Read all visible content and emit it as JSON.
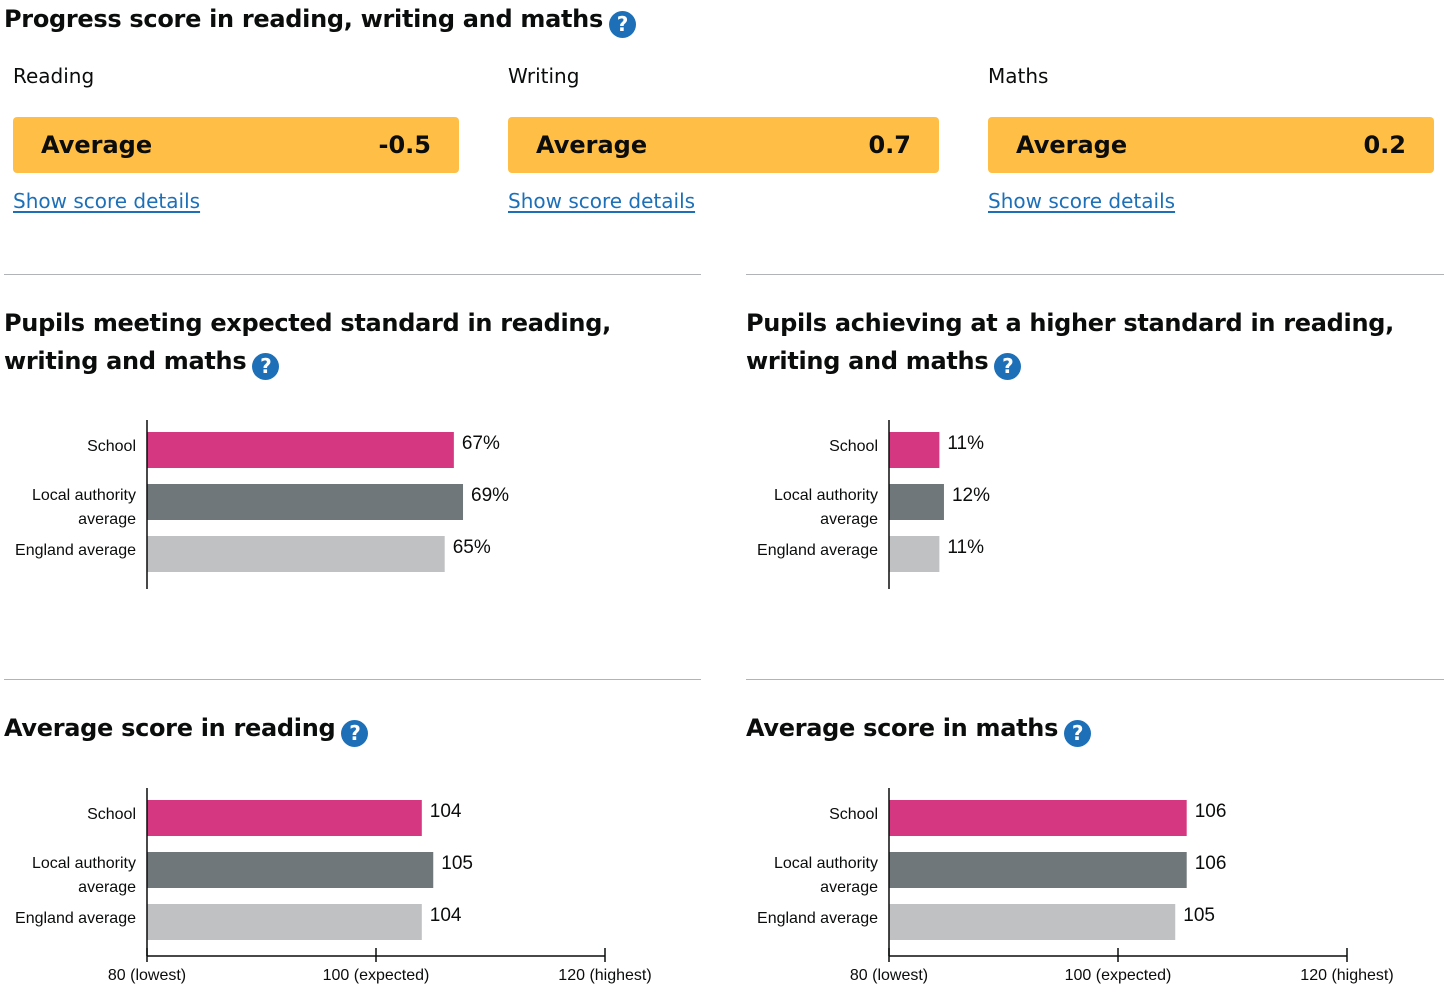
{
  "progress": {
    "title": "Progress score in reading, writing and maths",
    "help_icon": "?",
    "subjects": [
      {
        "label": "Reading",
        "band": "Average",
        "score": "-0.5",
        "link": "Show score details"
      },
      {
        "label": "Writing",
        "band": "Average",
        "score": "0.7",
        "link": "Show score details"
      },
      {
        "label": "Maths",
        "band": "Average",
        "score": "0.2",
        "link": "Show score details"
      }
    ],
    "band_color": "#ffbf47"
  },
  "colors": {
    "school": "#d53880",
    "local": "#6f777b",
    "england": "#bfc1c3",
    "link": "#1d70b8"
  },
  "chart_data": [
    {
      "type": "bar",
      "title": "Pupils meeting expected standard in reading, writing and maths",
      "categories": [
        "School",
        "Local authority average",
        "England average"
      ],
      "values": [
        67,
        69,
        65
      ],
      "value_labels": [
        "67%",
        "69%",
        "65%"
      ],
      "xlim": [
        0,
        100
      ],
      "tick_labels": [],
      "orientation": "horizontal"
    },
    {
      "type": "bar",
      "title": "Pupils achieving at a higher standard in reading, writing and maths",
      "categories": [
        "School",
        "Local authority average",
        "England average"
      ],
      "values": [
        11,
        12,
        11
      ],
      "value_labels": [
        "11%",
        "12%",
        "11%"
      ],
      "xlim": [
        0,
        100
      ],
      "tick_labels": [],
      "orientation": "horizontal"
    },
    {
      "type": "bar",
      "title": "Average score in reading",
      "categories": [
        "School",
        "Local authority average",
        "England average"
      ],
      "values": [
        104,
        105,
        104
      ],
      "value_labels": [
        "104",
        "105",
        "104"
      ],
      "xlim": [
        80,
        120
      ],
      "ticks": [
        80,
        100,
        120
      ],
      "tick_labels": [
        "80 (lowest)",
        "100 (expected)",
        "120 (highest)"
      ],
      "orientation": "horizontal"
    },
    {
      "type": "bar",
      "title": "Average score in maths",
      "categories": [
        "School",
        "Local authority average",
        "England average"
      ],
      "values": [
        106,
        106,
        105
      ],
      "value_labels": [
        "106",
        "106",
        "105"
      ],
      "xlim": [
        80,
        120
      ],
      "ticks": [
        80,
        100,
        120
      ],
      "tick_labels": [
        "80 (lowest)",
        "100 (expected)",
        "120 (highest)"
      ],
      "orientation": "horizontal"
    }
  ]
}
